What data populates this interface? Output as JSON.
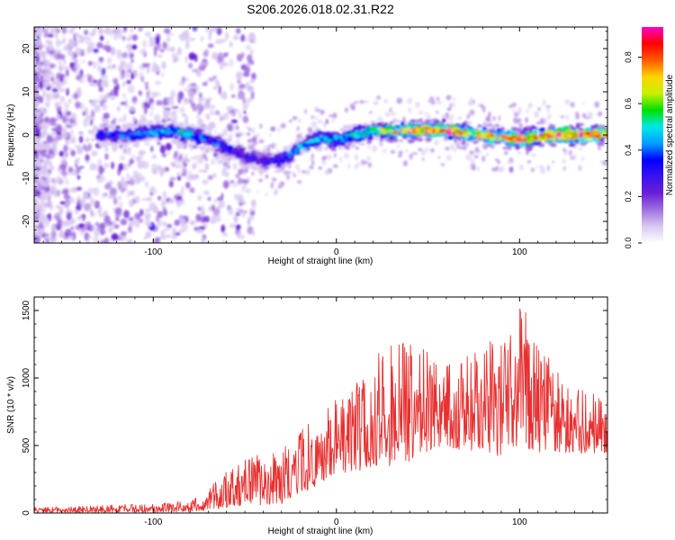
{
  "title": "S206.2026.018.02.31.R22",
  "colors": {
    "snr_line": "#e83030",
    "axes": "#000000",
    "colormap": [
      "#ffffff",
      "#d9c8f0",
      "#a070e0",
      "#6a1fd6",
      "#3a12ee",
      "#0000ff",
      "#00a0ff",
      "#00e8e8",
      "#00e000",
      "#c8f000",
      "#ffd400",
      "#ff5a00",
      "#ff0000",
      "#ff00c8"
    ]
  },
  "chart_data": [
    {
      "type": "heatmap",
      "title": "S206.2026.018.02.31.R22",
      "xlabel": "Height of straight line (km)",
      "ylabel": "Frequency (Hz)",
      "xlim": [
        -165,
        148
      ],
      "ylim": [
        -25,
        25
      ],
      "xticks": [
        -100,
        0,
        100
      ],
      "xtick_labels": [
        "-100",
        "0",
        "100"
      ],
      "yticks": [
        -20,
        -10,
        0,
        10,
        20
      ],
      "ytick_labels": [
        "-20",
        "-10",
        "0",
        "10",
        "20"
      ],
      "colorbar": {
        "label": "Normalized spectral amplitude",
        "range": [
          0,
          0.93
        ],
        "ticks": [
          0.0,
          0.2,
          0.4,
          0.6,
          0.8
        ],
        "tick_labels": [
          "0.0",
          "0.2",
          "0.4",
          "0.6",
          "0.8"
        ]
      },
      "ridge": {
        "x": [
          -130,
          -110,
          -90,
          -80,
          -70,
          -60,
          -50,
          -40,
          -30,
          -20,
          -10,
          0,
          10,
          20,
          30,
          40,
          60,
          80,
          100,
          120,
          148
        ],
        "freq": [
          0,
          0,
          1,
          0,
          -1,
          -3,
          -5,
          -6,
          -6,
          -3,
          -1,
          -1,
          0,
          1,
          1,
          1,
          1,
          0,
          -1,
          0,
          0
        ],
        "peak_amplitude": [
          0.35,
          0.45,
          0.5,
          0.55,
          0.4,
          0.35,
          0.3,
          0.3,
          0.4,
          0.45,
          0.5,
          0.5,
          0.55,
          0.6,
          0.7,
          0.85,
          0.9,
          0.7,
          0.85,
          0.9,
          0.85
        ]
      }
    },
    {
      "type": "line",
      "xlabel": "Height of straight line (km)",
      "ylabel": "SNR (10 * v/v)",
      "xlim": [
        -165,
        148
      ],
      "ylim": [
        0,
        1600
      ],
      "xticks": [
        -100,
        0,
        100
      ],
      "xtick_labels": [
        "-100",
        "0",
        "100"
      ],
      "yticks": [
        0,
        500,
        1000,
        1500
      ],
      "ytick_labels": [
        "0",
        "500",
        "1000",
        "1500"
      ],
      "series": [
        {
          "name": "SNR",
          "color": "#e83030",
          "envelope_x": [
            -165,
            -140,
            -120,
            -100,
            -80,
            -70,
            -60,
            -50,
            -40,
            -30,
            -20,
            -10,
            0,
            10,
            20,
            30,
            40,
            50,
            60,
            70,
            80,
            90,
            100,
            110,
            120,
            130,
            140,
            148
          ],
          "envelope_max": [
            40,
            50,
            60,
            70,
            90,
            180,
            320,
            420,
            450,
            500,
            620,
            720,
            850,
            950,
            1200,
            1300,
            1250,
            1200,
            1100,
            1150,
            1250,
            1300,
            1600,
            1300,
            1050,
            950,
            900,
            850
          ],
          "envelope_min": [
            5,
            5,
            5,
            5,
            10,
            20,
            40,
            60,
            60,
            70,
            150,
            200,
            300,
            300,
            350,
            350,
            380,
            450,
            500,
            450,
            480,
            400,
            500,
            450,
            450,
            450,
            420,
            450
          ]
        }
      ]
    }
  ]
}
